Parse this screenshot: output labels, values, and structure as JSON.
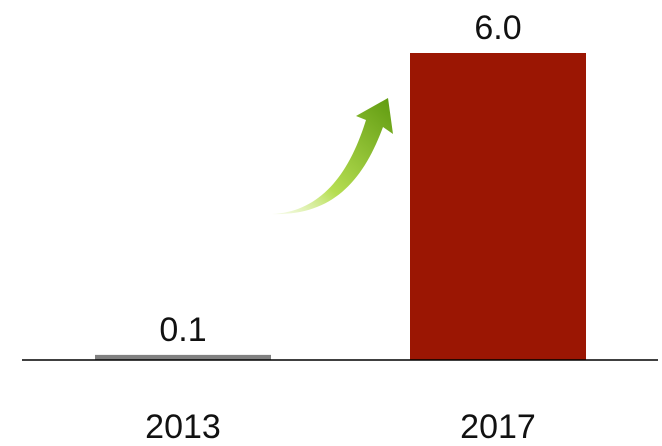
{
  "chart_data": {
    "type": "bar",
    "categories": [
      "2013",
      "2017"
    ],
    "values": [
      0.1,
      6.0
    ],
    "value_labels": [
      "0.1",
      "6.0"
    ],
    "title": "",
    "xlabel": "",
    "ylabel": "",
    "ylim": [
      0,
      6.0
    ],
    "grid": false,
    "legend": "none",
    "bar_colors": [
      "#808080",
      "#9b1603"
    ],
    "arrow_color": "#7cb518",
    "arrow_icon": "curved-growth-arrow-icon"
  }
}
